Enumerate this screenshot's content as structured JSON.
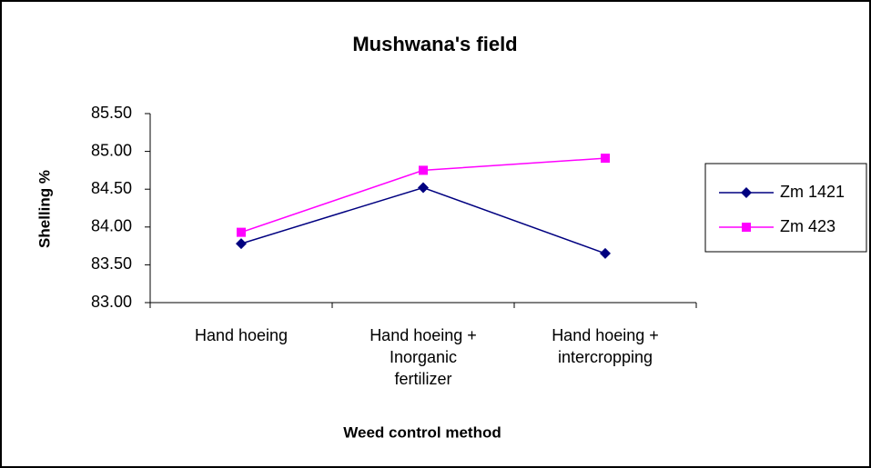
{
  "chart_data": {
    "type": "line",
    "title": "Mushwana's field",
    "x_label": "Weed control method",
    "y_label": "Shelling %",
    "categories": [
      "Hand hoeing",
      "Hand hoeing + Inorganic fertilizer",
      "Hand hoeing + intercropping"
    ],
    "series": [
      {
        "name": "Zm 1421",
        "color": "#000080",
        "marker": "diamond",
        "values": [
          83.78,
          84.52,
          83.65
        ]
      },
      {
        "name": "Zm 423",
        "color": "#ff00ff",
        "marker": "square",
        "values": [
          83.93,
          84.75,
          84.91
        ]
      }
    ],
    "ylim": [
      83.0,
      85.5
    ],
    "yticks": [
      {
        "value": 83.0,
        "label": "83.00"
      },
      {
        "value": 83.5,
        "label": "83.50"
      },
      {
        "value": 84.0,
        "label": "84.00"
      },
      {
        "value": 84.5,
        "label": "84.50"
      },
      {
        "value": 85.0,
        "label": "85.00"
      },
      {
        "value": 85.5,
        "label": "85.50"
      }
    ],
    "legend": "right"
  }
}
